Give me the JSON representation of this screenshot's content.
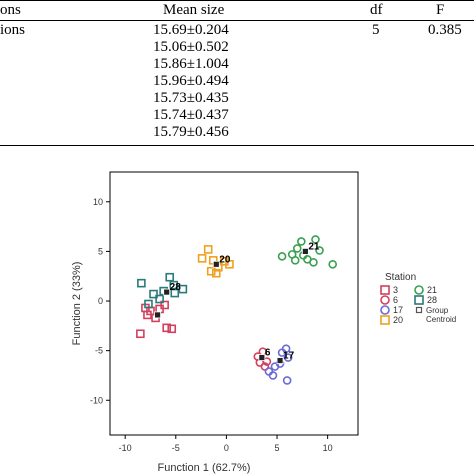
{
  "table": {
    "headers": {
      "stations": "ons",
      "mean_size": "Mean size",
      "df": "df",
      "f": "F"
    },
    "row_label": "ions",
    "mean_sizes": [
      "15.69±0.204",
      "15.06±0.502",
      "15.86±1.004",
      "15.96±0.494",
      "15.73±0.435",
      "15.74±0.437",
      "15.79±0.456"
    ],
    "df_value": "5",
    "f_value": "0.385"
  },
  "chart_data": {
    "type": "scatter",
    "xlabel": "Function 1  (62.7%)",
    "ylabel": "Function 2  (33%)",
    "xlim": [
      -11.5,
      13
    ],
    "ylim": [
      -13.5,
      13
    ],
    "xticks": [
      -10,
      -5,
      0,
      5,
      10
    ],
    "yticks": [
      -10,
      -5,
      0,
      5,
      10
    ],
    "grid": false,
    "legend": {
      "title": "Station",
      "placement": "right",
      "entries": [
        {
          "label": "3",
          "marker": "square",
          "color": "#d43f5e"
        },
        {
          "label": "6",
          "marker": "circle",
          "color": "#d43f5e"
        },
        {
          "label": "17",
          "marker": "circle",
          "color": "#6a6ad8"
        },
        {
          "label": "20",
          "marker": "square",
          "color": "#f0a020"
        },
        {
          "label": "21",
          "marker": "circle",
          "color": "#3aa050"
        },
        {
          "label": "28",
          "marker": "square",
          "color": "#2a7a7a"
        },
        {
          "label": "Group Centroid",
          "marker": "centroid",
          "color": "#555555"
        }
      ]
    },
    "series": [
      {
        "name": "3",
        "marker": "square",
        "color": "#d43f5e",
        "points": [
          [
            -8.5,
            -3.3
          ],
          [
            -7.8,
            -1.4
          ],
          [
            -7.5,
            -1.0
          ],
          [
            -7,
            -1.7
          ],
          [
            -6.6,
            -0.8
          ],
          [
            -5.9,
            -2.7
          ],
          [
            -5.4,
            -2.8
          ],
          [
            -6.1,
            -0.4
          ],
          [
            -8,
            -0.7
          ]
        ]
      },
      {
        "name": "6",
        "marker": "circle",
        "color": "#d43f5e",
        "points": [
          [
            3.1,
            -5.6
          ],
          [
            3.3,
            -6.2
          ],
          [
            3.6,
            -5.1
          ],
          [
            4,
            -6.1
          ],
          [
            3.8,
            -6.6
          ]
        ]
      },
      {
        "name": "17",
        "marker": "circle",
        "color": "#6a6ad8",
        "points": [
          [
            4.2,
            -7.1
          ],
          [
            4.8,
            -6.6
          ],
          [
            5.5,
            -5.2
          ],
          [
            5.9,
            -4.8
          ],
          [
            6.1,
            -5.7
          ],
          [
            5.3,
            -6.3
          ],
          [
            6.0,
            -8.0
          ],
          [
            4.6,
            -7.5
          ]
        ]
      },
      {
        "name": "20",
        "marker": "square",
        "color": "#f0a020",
        "points": [
          [
            -2.4,
            4.3
          ],
          [
            -1.8,
            5.2
          ],
          [
            -1.3,
            4.1
          ],
          [
            -0.8,
            3.4
          ],
          [
            -0.2,
            4.0
          ],
          [
            -1.5,
            3.0
          ],
          [
            -1.0,
            2.8
          ],
          [
            0.3,
            3.7
          ]
        ]
      },
      {
        "name": "21",
        "marker": "circle",
        "color": "#3aa050",
        "points": [
          [
            5.5,
            4.5
          ],
          [
            6.5,
            4.7
          ],
          [
            7.0,
            5.3
          ],
          [
            7.4,
            6.0
          ],
          [
            6.8,
            4.1
          ],
          [
            8.0,
            4.2
          ],
          [
            8.8,
            6.2
          ],
          [
            9.2,
            5.1
          ],
          [
            10.5,
            3.7
          ],
          [
            7.6,
            4.6
          ],
          [
            8.6,
            3.9
          ]
        ]
      },
      {
        "name": "28",
        "marker": "square",
        "color": "#2a7a7a",
        "points": [
          [
            -8.4,
            1.8
          ],
          [
            -7.7,
            -0.3
          ],
          [
            -6.2,
            1.0
          ],
          [
            -5.6,
            2.4
          ],
          [
            -5.2,
            1.6
          ],
          [
            -4.3,
            1.2
          ],
          [
            -5.1,
            0.8
          ],
          [
            -6.6,
            0.2
          ],
          [
            -7.2,
            0.7
          ]
        ]
      }
    ],
    "centroids": [
      {
        "label": "",
        "x": -6.8,
        "y": -1.4
      },
      {
        "label": "28",
        "x": -5.9,
        "y": 0.9
      },
      {
        "label": "6",
        "x": 3.5,
        "y": -5.7
      },
      {
        "label": "17",
        "x": 5.3,
        "y": -6.0
      },
      {
        "label": "20",
        "x": -1.0,
        "y": 3.7
      },
      {
        "label": "21",
        "x": 7.8,
        "y": 5.0
      }
    ]
  }
}
